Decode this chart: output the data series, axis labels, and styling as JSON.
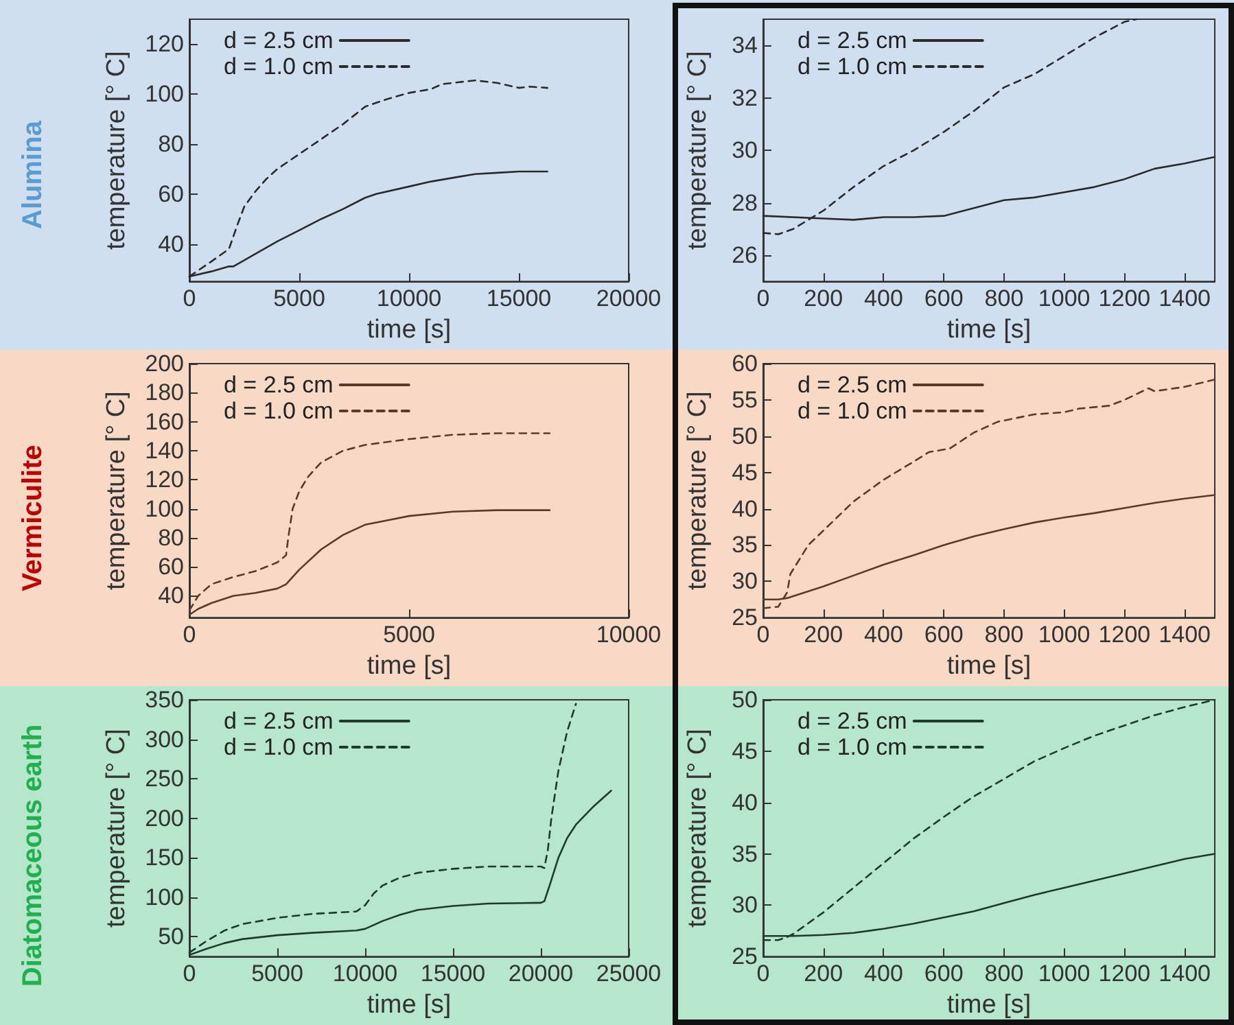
{
  "chart_data": [
    {
      "type": "line",
      "title": "Alumina",
      "xlabel": "time [s]",
      "ylabel": "temperature [° C]",
      "xlim": [
        0,
        20000
      ],
      "xticks": [
        0,
        5000,
        10000,
        15000,
        20000
      ],
      "ylim": [
        25,
        130
      ],
      "yticks": [
        40,
        60,
        80,
        100,
        120
      ],
      "legend": "top left",
      "marker": "none",
      "series": [
        {
          "name": "d = 2.5 cm",
          "color": "#2a2a2a",
          "line_style": "solid",
          "x": [
            0,
            1000,
            1800,
            2000,
            3000,
            4000,
            5000,
            6000,
            7000,
            8000,
            8500,
            10000,
            11000,
            12000,
            13000,
            14000,
            15000,
            16300
          ],
          "values": [
            27,
            29,
            31,
            31,
            36,
            41,
            45.5,
            50,
            54,
            58.5,
            60,
            63,
            65,
            66.5,
            68,
            68.5,
            69,
            69
          ]
        },
        {
          "name": "d = 1.0 cm",
          "color": "#2a2a2a",
          "line_style": "dashed",
          "x": [
            0,
            1000,
            1800,
            2200,
            2500,
            3000,
            3500,
            4000,
            5000,
            6000,
            7000,
            8000,
            9000,
            10000,
            11000,
            11500,
            12000,
            13000,
            14000,
            15000,
            15500,
            16300
          ],
          "values": [
            27,
            33,
            38,
            48,
            55,
            61,
            66,
            70,
            76,
            82,
            88,
            95,
            98,
            100.5,
            102,
            104,
            104.5,
            105.5,
            104.5,
            102.5,
            103,
            102.5
          ]
        }
      ]
    },
    {
      "type": "line",
      "xlabel": "time [s]",
      "ylabel": "temperature [° C]",
      "xlim": [
        0,
        1500
      ],
      "xticks": [
        0,
        200,
        400,
        600,
        800,
        1000,
        1200,
        1400
      ],
      "ylim": [
        25,
        35
      ],
      "yticks": [
        26,
        28,
        30,
        32,
        34
      ],
      "legend": "top left",
      "marker": "none",
      "series": [
        {
          "name": "d = 2.5 cm",
          "color": "#2a2a2a",
          "line_style": "solid",
          "x": [
            0,
            200,
            300,
            400,
            500,
            600,
            700,
            800,
            900,
            1000,
            1100,
            1200,
            1300,
            1400,
            1500
          ],
          "values": [
            27.5,
            27.4,
            27.35,
            27.45,
            27.45,
            27.5,
            27.8,
            28.1,
            28.2,
            28.4,
            28.6,
            28.9,
            29.3,
            29.5,
            29.75
          ]
        },
        {
          "name": "d = 1.0 cm",
          "color": "#2a2a2a",
          "line_style": "dashed",
          "x": [
            0,
            50,
            100,
            200,
            300,
            400,
            500,
            600,
            700,
            800,
            900,
            1000,
            1100,
            1200,
            1240
          ],
          "values": [
            26.85,
            26.8,
            27.0,
            27.7,
            28.6,
            29.4,
            30.0,
            30.7,
            31.5,
            32.4,
            32.9,
            33.6,
            34.3,
            34.9,
            35
          ]
        }
      ]
    },
    {
      "type": "line",
      "title": "Vermiculite",
      "xlabel": "time [s]",
      "ylabel": "temperature [° C]",
      "xlim": [
        0,
        10000
      ],
      "xticks": [
        0,
        5000,
        10000
      ],
      "ylim": [
        25,
        200
      ],
      "yticks": [
        40,
        60,
        80,
        100,
        120,
        140,
        160,
        180,
        200
      ],
      "legend": "top left",
      "marker": "none",
      "series": [
        {
          "name": "d = 2.5 cm",
          "color": "#5a3a2a",
          "line_style": "solid",
          "x": [
            0,
            200,
            500,
            1000,
            1500,
            2000,
            2200,
            2500,
            3000,
            3500,
            4000,
            4500,
            5000,
            6000,
            7000,
            8200
          ],
          "values": [
            27,
            31,
            35,
            40,
            42,
            45,
            48,
            58,
            72,
            82,
            89,
            92,
            95,
            98,
            99,
            99
          ]
        },
        {
          "name": "d = 1.0 cm",
          "color": "#5a3a2a",
          "line_style": "dashed",
          "x": [
            0,
            200,
            500,
            1000,
            1500,
            2000,
            2200,
            2250,
            2350,
            2500,
            2700,
            3000,
            3500,
            4000,
            5000,
            6000,
            7000,
            8200
          ],
          "values": [
            30,
            40,
            48,
            53,
            57,
            63,
            68,
            80,
            100,
            112,
            122,
            132,
            140,
            144,
            148,
            151,
            152,
            152
          ]
        }
      ]
    },
    {
      "type": "line",
      "xlabel": "time [s]",
      "ylabel": "temperature [° C]",
      "xlim": [
        0,
        1500
      ],
      "xticks": [
        0,
        200,
        400,
        600,
        800,
        1000,
        1200,
        1400
      ],
      "ylim": [
        25,
        60
      ],
      "yticks": [
        25,
        30,
        35,
        40,
        45,
        50,
        55,
        60
      ],
      "legend": "top left",
      "marker": "none",
      "series": [
        {
          "name": "d = 2.5 cm",
          "color": "#5a3a2a",
          "line_style": "solid",
          "x": [
            0,
            50,
            80,
            200,
            300,
            400,
            500,
            600,
            700,
            800,
            900,
            1000,
            1100,
            1200,
            1300,
            1400,
            1500
          ],
          "values": [
            27.5,
            27.5,
            27.7,
            29.3,
            30.8,
            32.3,
            33.6,
            35,
            36.2,
            37.2,
            38.1,
            38.8,
            39.4,
            40.1,
            40.8,
            41.4,
            41.9
          ]
        },
        {
          "name": "d = 1.0 cm",
          "color": "#5a3a2a",
          "line_style": "dashed",
          "x": [
            0,
            50,
            80,
            90,
            150,
            200,
            300,
            400,
            500,
            550,
            620,
            700,
            780,
            900,
            1000,
            1050,
            1150,
            1200,
            1280,
            1300,
            1400,
            1500
          ],
          "values": [
            26.3,
            26.5,
            28.5,
            31,
            35,
            37,
            41,
            44,
            46.5,
            47.8,
            48.3,
            50.5,
            52,
            53,
            53.3,
            53.8,
            54.2,
            55,
            56.6,
            56.2,
            56.8,
            57.8
          ]
        }
      ]
    },
    {
      "type": "line",
      "title": "Diatomaceous earth",
      "xlabel": "time [s]",
      "ylabel": "temperature [° C]",
      "xlim": [
        0,
        25000
      ],
      "xticks": [
        0,
        5000,
        10000,
        15000,
        20000,
        25000
      ],
      "ylim": [
        25,
        350
      ],
      "yticks": [
        50,
        100,
        150,
        200,
        250,
        300,
        350
      ],
      "legend": "top left",
      "marker": "none",
      "series": [
        {
          "name": "d = 2.5 cm",
          "color": "#1f3a2a",
          "line_style": "solid",
          "x": [
            0,
            1000,
            2000,
            3000,
            5000,
            7000,
            9500,
            10000,
            11000,
            12000,
            13000,
            15000,
            17000,
            20000,
            20200,
            20500,
            21000,
            21500,
            22000,
            23000,
            24000
          ],
          "values": [
            27,
            35,
            42,
            47,
            52,
            55,
            58,
            60,
            70,
            78,
            84,
            89,
            92,
            93,
            95,
            115,
            150,
            175,
            192,
            215,
            235
          ]
        },
        {
          "name": "d = 1.0 cm",
          "color": "#1f3a2a",
          "line_style": "dashed",
          "x": [
            0,
            1000,
            2000,
            3000,
            5000,
            7000,
            9500,
            10000,
            10500,
            11000,
            12000,
            13000,
            15000,
            17000,
            20000,
            20200,
            20400,
            20600,
            21000,
            21500,
            22000
          ],
          "values": [
            30,
            45,
            58,
            66,
            74,
            79,
            82,
            90,
            105,
            115,
            125,
            131,
            136,
            139,
            139,
            137,
            160,
            200,
            260,
            310,
            345
          ]
        }
      ]
    },
    {
      "type": "line",
      "xlabel": "time [s]",
      "ylabel": "temperature [° C]",
      "xlim": [
        0,
        1500
      ],
      "xticks": [
        0,
        200,
        400,
        600,
        800,
        1000,
        1200,
        1400
      ],
      "ylim": [
        25,
        50
      ],
      "yticks": [
        25,
        30,
        35,
        40,
        45,
        50
      ],
      "legend": "top left",
      "marker": "none",
      "series": [
        {
          "name": "d = 2.5 cm",
          "color": "#1f3a2a",
          "line_style": "solid",
          "x": [
            0,
            100,
            200,
            300,
            400,
            500,
            600,
            700,
            800,
            900,
            1000,
            1100,
            1200,
            1300,
            1400,
            1500
          ],
          "values": [
            27,
            27,
            27.1,
            27.3,
            27.7,
            28.2,
            28.8,
            29.4,
            30.2,
            31,
            31.7,
            32.4,
            33.1,
            33.8,
            34.5,
            35
          ]
        },
        {
          "name": "d = 1.0 cm",
          "color": "#1f3a2a",
          "line_style": "dashed",
          "x": [
            0,
            50,
            80,
            100,
            200,
            300,
            400,
            500,
            600,
            700,
            800,
            900,
            1000,
            1100,
            1200,
            1300,
            1400,
            1500
          ],
          "values": [
            26.6,
            26.6,
            26.9,
            27.2,
            29.3,
            31.7,
            34.1,
            36.5,
            38.6,
            40.6,
            42.3,
            44,
            45.3,
            46.5,
            47.5,
            48.5,
            49.3,
            50
          ]
        }
      ]
    }
  ]
}
